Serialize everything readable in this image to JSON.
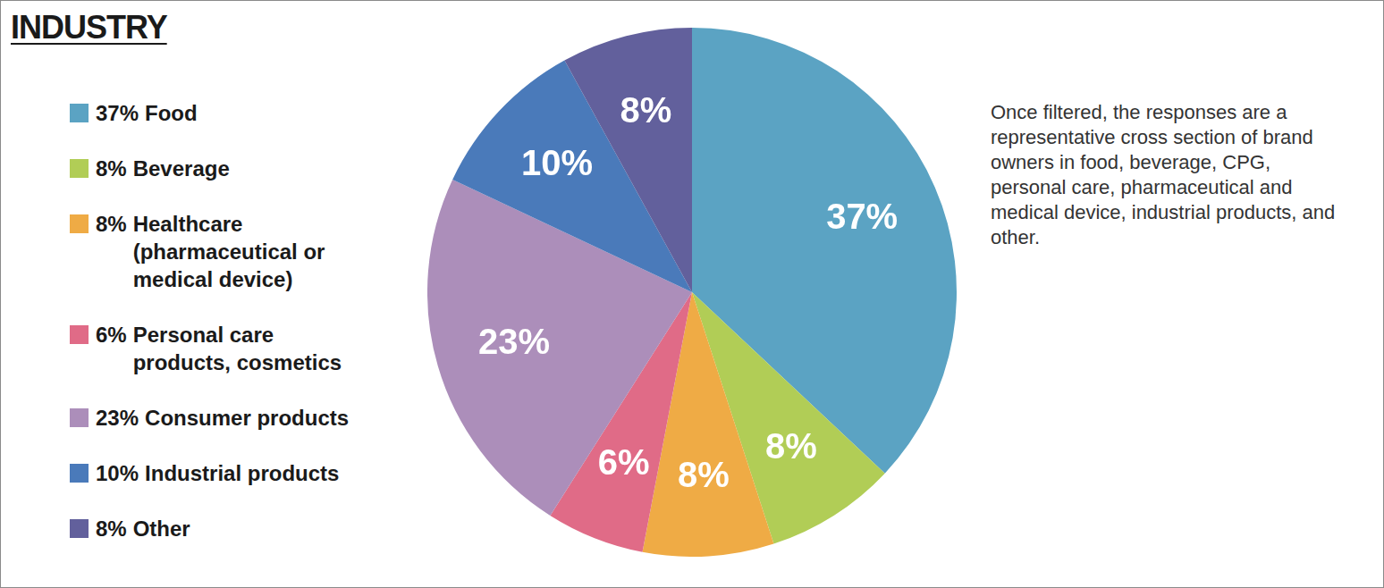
{
  "chart_data": {
    "type": "pie",
    "title": "INDUSTRY",
    "categories": [
      "Food",
      "Beverage",
      "Healthcare (pharmaceutical or medical device)",
      "Personal care products, cosmetics",
      "Consumer products",
      "Industrial products",
      "Other"
    ],
    "values": [
      37,
      8,
      8,
      6,
      23,
      10,
      8
    ],
    "value_labels": [
      "37%",
      "8%",
      "8%",
      "6%",
      "23%",
      "10%",
      "8%"
    ],
    "colors": [
      "#5ba3c3",
      "#b1cd56",
      "#efab45",
      "#e06b87",
      "#ac8eba",
      "#4a7aba",
      "#62609c"
    ],
    "legend": "left",
    "data_labels": true,
    "annotations": [
      "Once filtered, the responses are a representative cross section of brand owners in food, beverage, CPG, personal care, pharmaceutical and medical device, industrial products, and other."
    ]
  }
}
